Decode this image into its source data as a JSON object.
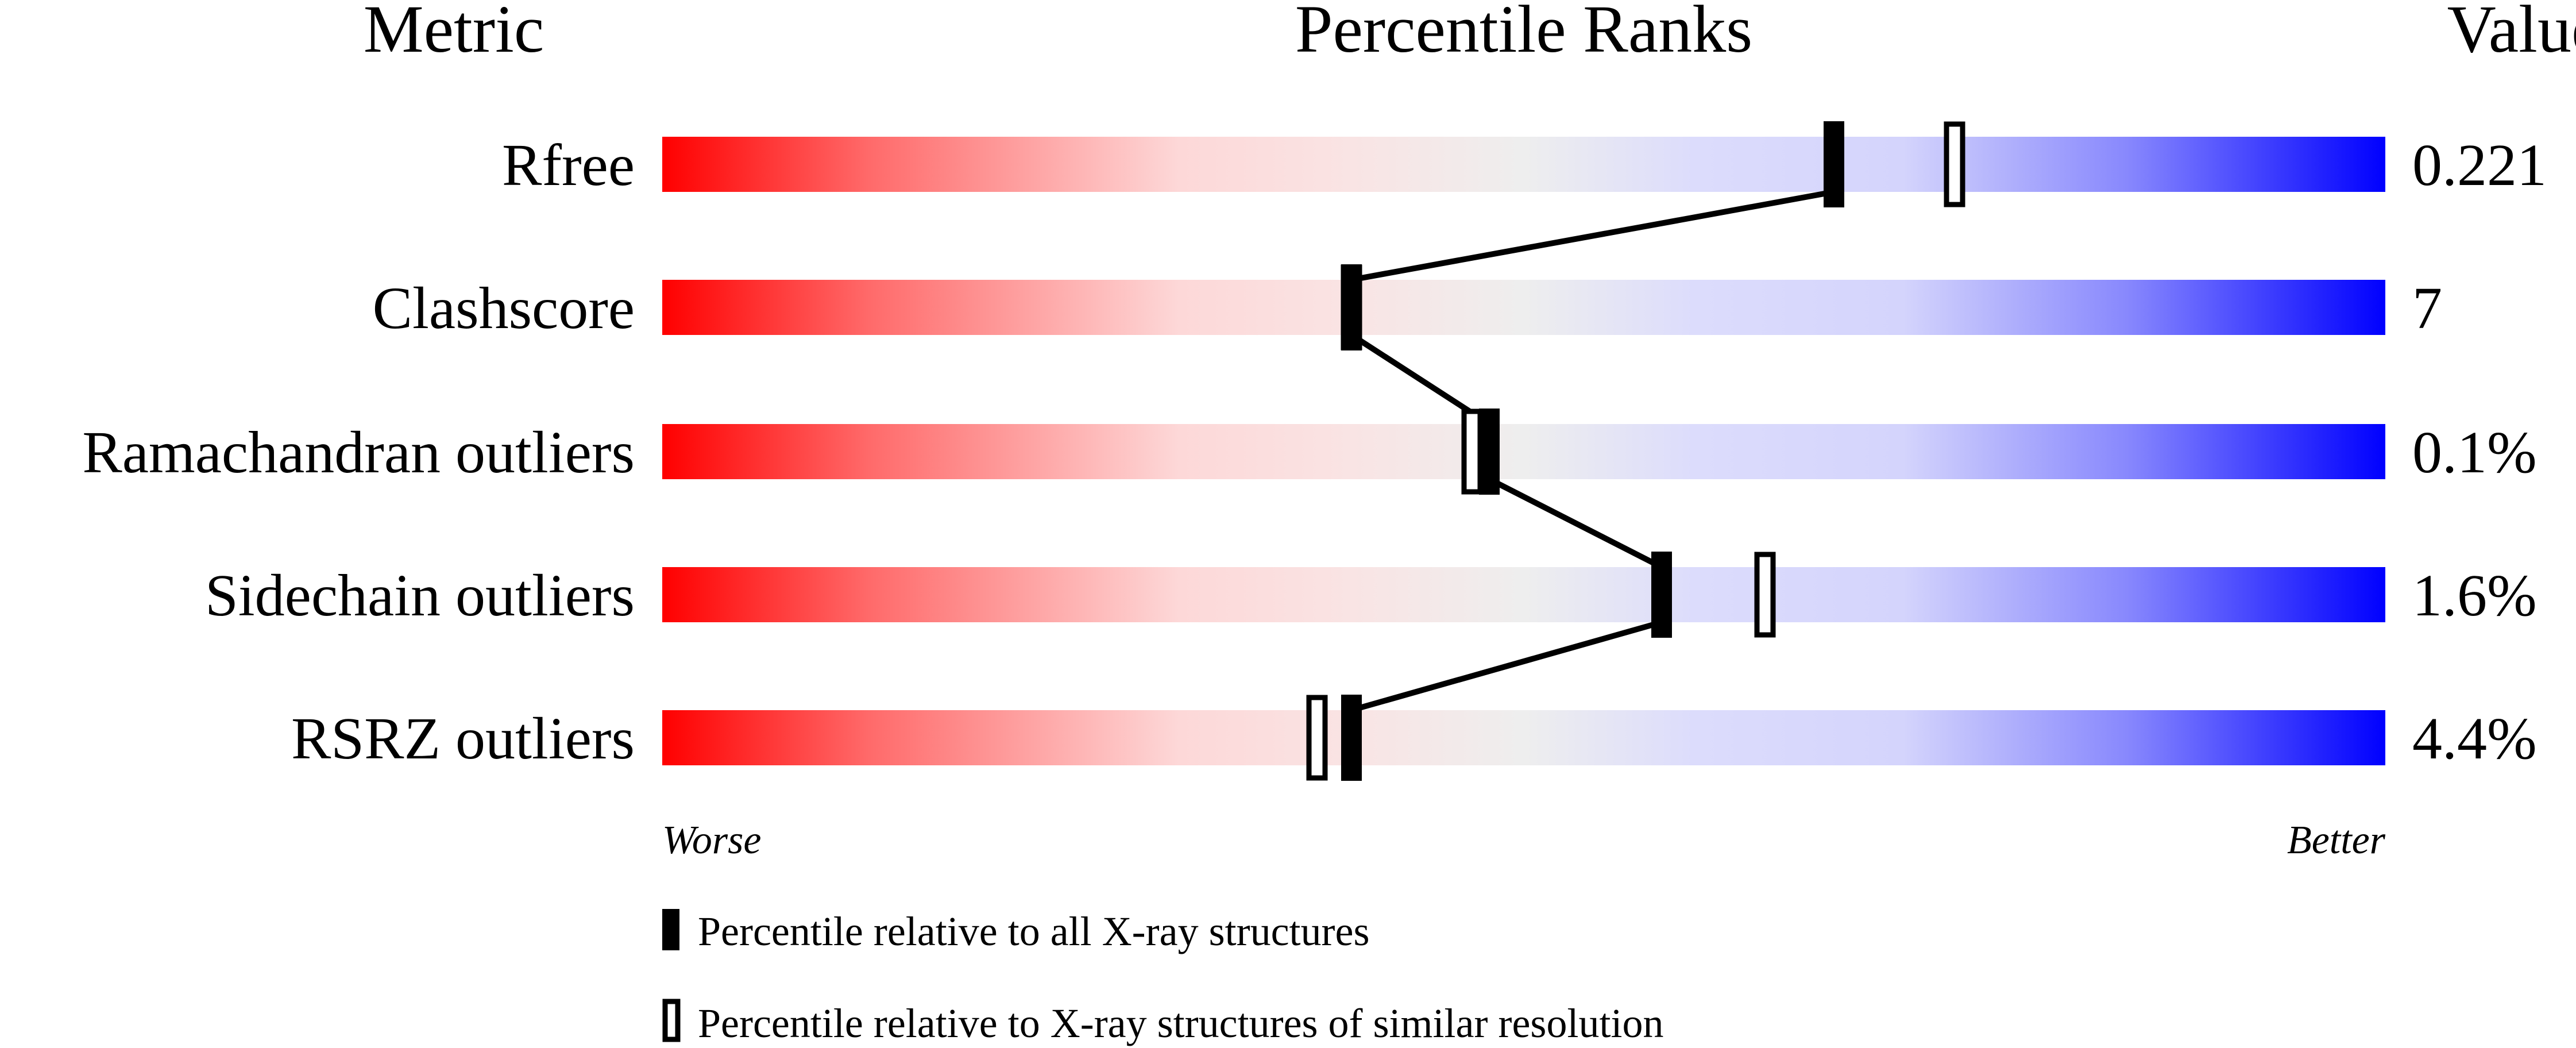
{
  "chart_data": {
    "type": "percentile-slider",
    "headers": {
      "metric": "Metric",
      "ranks": "Percentile Ranks",
      "value": "Value"
    },
    "xlim": [
      0,
      100
    ],
    "axis_ends": {
      "left": "Worse",
      "right": "Better"
    },
    "gradient_colors": {
      "worse": "#ff0000",
      "mid": "#eeeeee",
      "better": "#0000ff"
    },
    "metrics": [
      {
        "name": "Rfree",
        "value": "0.221",
        "percentile_all": 68,
        "percentile_similar": 75
      },
      {
        "name": "Clashscore",
        "value": "7",
        "percentile_all": 40,
        "percentile_similar": 40
      },
      {
        "name": "Ramachandran outliers",
        "value": "0.1%",
        "percentile_all": 48,
        "percentile_similar": 47
      },
      {
        "name": "Sidechain outliers",
        "value": "1.6%",
        "percentile_all": 58,
        "percentile_similar": 64
      },
      {
        "name": "RSRZ outliers",
        "value": "4.4%",
        "percentile_all": 40,
        "percentile_similar": 38
      }
    ],
    "legend": [
      {
        "marker": "filled",
        "label": "Percentile relative to all X-ray structures"
      },
      {
        "marker": "open",
        "label": "Percentile relative to X-ray structures of similar resolution"
      }
    ]
  }
}
